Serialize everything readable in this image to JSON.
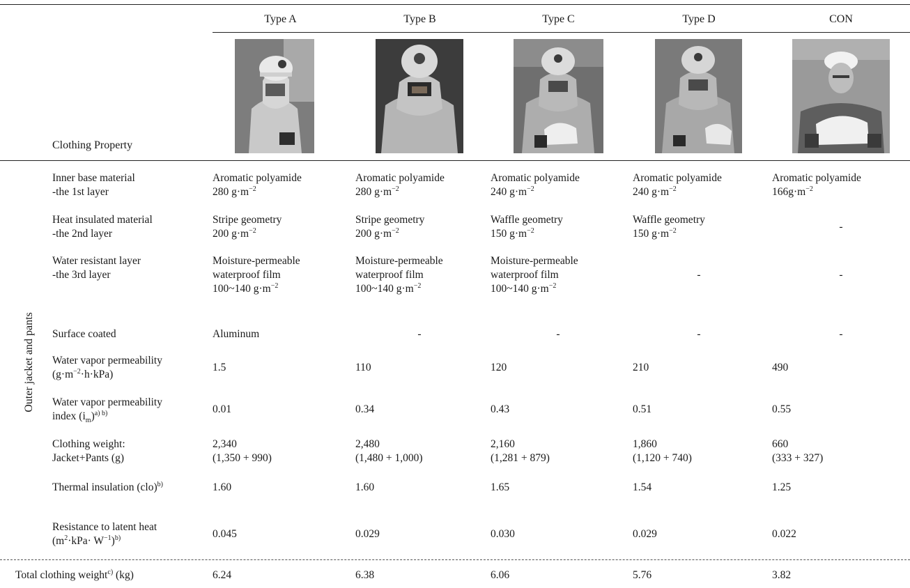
{
  "table": {
    "header": {
      "property_label": "Clothing Property",
      "columns": [
        "Type A",
        "Type B",
        "Type C",
        "Type D",
        "CON"
      ],
      "photos": [
        "firefighter-photo-type-a",
        "firefighter-photo-type-b",
        "firefighter-photo-type-c",
        "firefighter-photo-type-d",
        "worker-photo-con"
      ]
    },
    "group_label": "Outer jacket and pants",
    "rows": [
      {
        "label": [
          "Inner base material",
          "-the 1st layer"
        ],
        "cells": [
          [
            "Aromatic polyamide",
            "280 g·m⁻²"
          ],
          [
            "Aromatic polyamide",
            "280 g·m⁻²"
          ],
          [
            "Aromatic polyamide",
            "240 g·m⁻²"
          ],
          [
            "Aromatic polyamide",
            "240 g·m⁻²"
          ],
          [
            "Aromatic polyamide",
            "166g·m⁻²"
          ]
        ]
      },
      {
        "label": [
          "Heat insulated material",
          "-the 2nd layer"
        ],
        "cells": [
          [
            "Stripe geometry",
            "200 g·m⁻²"
          ],
          [
            "Stripe geometry",
            "200 g·m⁻²"
          ],
          [
            "Waffle geometry",
            "150 g·m⁻²"
          ],
          [
            "Waffle geometry",
            "150 g·m⁻²"
          ],
          [
            "-"
          ]
        ]
      },
      {
        "label": [
          "Water resistant layer",
          "-the 3rd layer"
        ],
        "cells": [
          [
            "Moisture-permeable",
            "waterproof film",
            "100~140 g·m⁻²"
          ],
          [
            "Moisture-permeable",
            "waterproof film",
            "100~140 g·m⁻²"
          ],
          [
            "Moisture-permeable",
            "waterproof film",
            "100~140 g·m⁻²"
          ],
          [
            "-"
          ],
          [
            "-"
          ]
        ]
      },
      {
        "label": [
          "Surface coated"
        ],
        "cells": [
          [
            "Aluminum"
          ],
          [
            "-"
          ],
          [
            "-"
          ],
          [
            "-"
          ],
          [
            "-"
          ]
        ]
      },
      {
        "label": [
          "Water vapor permeability",
          "(g·m⁻²·h·kPa)"
        ],
        "cells": [
          [
            "1.5"
          ],
          [
            "110"
          ],
          [
            "120"
          ],
          [
            "210"
          ],
          [
            "490"
          ]
        ]
      },
      {
        "label": [
          "Water vapor permeability",
          "index (im)a) b)"
        ],
        "cells": [
          [
            "0.01"
          ],
          [
            "0.34"
          ],
          [
            "0.43"
          ],
          [
            "0.51"
          ],
          [
            "0.55"
          ]
        ]
      },
      {
        "label": [
          "Clothing weight:",
          "Jacket+Pants (g)"
        ],
        "cells": [
          [
            "2,340",
            "(1,350 + 990)"
          ],
          [
            "2,480",
            "(1,480 + 1,000)"
          ],
          [
            "2,160",
            "(1,281 + 879)"
          ],
          [
            "1,860",
            "(1,120 + 740)"
          ],
          [
            "660",
            "(333 + 327)"
          ]
        ]
      },
      {
        "label": [
          "Thermal insulation (clo)b)"
        ],
        "cells": [
          [
            "1.60"
          ],
          [
            "1.60"
          ],
          [
            "1.65"
          ],
          [
            "1.54"
          ],
          [
            "1.25"
          ]
        ]
      },
      {
        "label": [
          "Resistance to latent heat",
          "(m2·kPa· W−1)b)"
        ],
        "cells": [
          [
            "0.045"
          ],
          [
            "0.029"
          ],
          [
            "0.030"
          ],
          [
            "0.029"
          ],
          [
            "0.022"
          ]
        ]
      }
    ],
    "total_row": {
      "label": "Total clothing weightc) (kg)",
      "cells": [
        "6.24",
        "6.38",
        "6.06",
        "5.76",
        "3.82"
      ]
    }
  }
}
